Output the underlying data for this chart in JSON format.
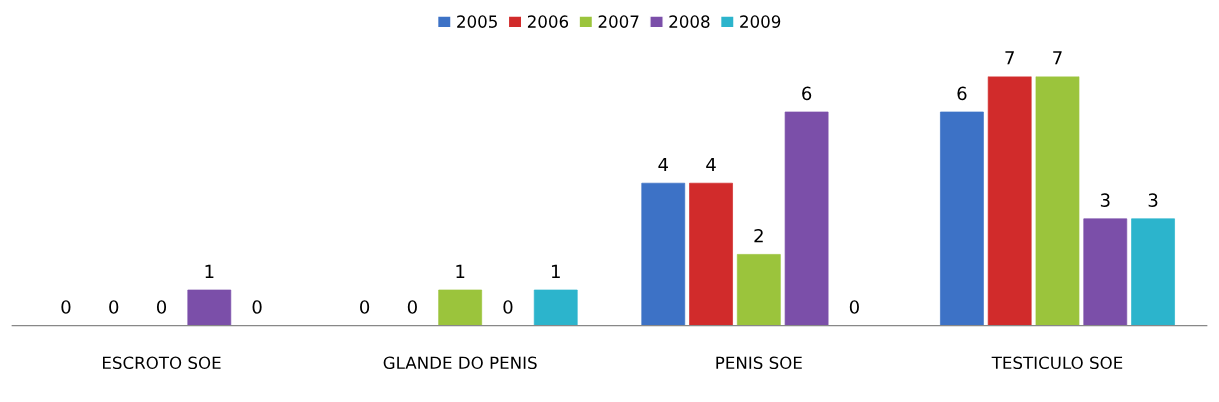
{
  "chart_data": {
    "type": "bar",
    "categories": [
      "ESCROTO SOE",
      "GLANDE DO PENIS",
      "PENIS SOE",
      "TESTICULO SOE"
    ],
    "series": [
      {
        "name": "2005",
        "color": "#3d72c6",
        "values": [
          0,
          0,
          4,
          6
        ]
      },
      {
        "name": "2006",
        "color": "#d12b2b",
        "values": [
          0,
          0,
          4,
          7
        ]
      },
      {
        "name": "2007",
        "color": "#9bc43c",
        "values": [
          0,
          1,
          2,
          7
        ]
      },
      {
        "name": "2008",
        "color": "#7b4fa9",
        "values": [
          1,
          0,
          6,
          3
        ]
      },
      {
        "name": "2009",
        "color": "#2cb4cc",
        "values": [
          0,
          1,
          0,
          3
        ]
      }
    ],
    "data_labels": true,
    "legend": "top",
    "grid": false
  }
}
